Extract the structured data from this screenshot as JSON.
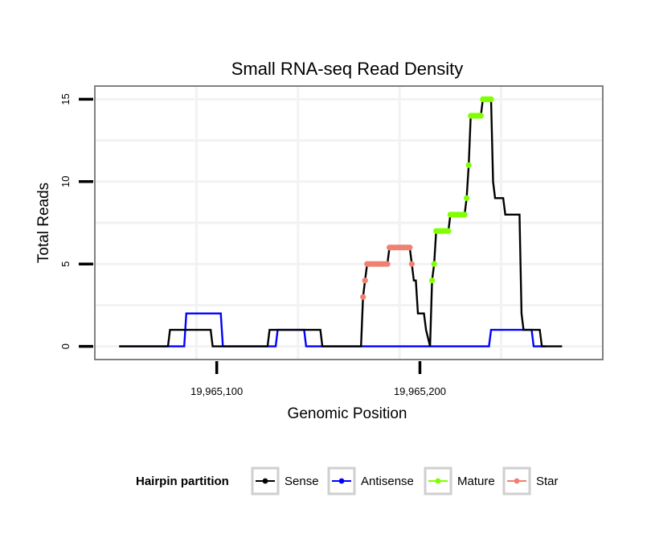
{
  "chart_data": {
    "type": "line",
    "title": "Small RNA-seq Read Density",
    "xlabel": "Genomic Position",
    "ylabel": "Total Reads",
    "xlim": [
      19965040,
      19965290
    ],
    "ylim": [
      -0.8,
      15.8
    ],
    "x_ticks": [
      19965100,
      19965200
    ],
    "x_tick_labels": [
      "19,965,100",
      "19,965,200"
    ],
    "y_ticks": [
      0,
      5,
      10,
      15
    ],
    "y_tick_labels": [
      "0",
      "5",
      "10",
      "15"
    ],
    "grid": true,
    "legend": {
      "title": "Hairpin partition",
      "position": "bottom",
      "entries": [
        "Sense",
        "Antisense",
        "Mature",
        "Star"
      ]
    },
    "series": [
      {
        "name": "Sense",
        "color": "#000000",
        "style": "line",
        "points": [
          [
            19965052,
            0
          ],
          [
            19965076,
            0
          ],
          [
            19965077,
            1
          ],
          [
            19965097,
            1
          ],
          [
            19965098,
            0
          ],
          [
            19965125,
            0
          ],
          [
            19965126,
            1
          ],
          [
            19965151,
            1
          ],
          [
            19965152,
            0
          ],
          [
            19965171,
            0
          ],
          [
            19965172,
            3
          ],
          [
            19965173,
            4
          ],
          [
            19965174,
            5
          ],
          [
            19965184,
            5
          ],
          [
            19965185,
            6
          ],
          [
            19965195,
            6
          ],
          [
            19965196,
            5
          ],
          [
            19965197,
            4
          ],
          [
            19965198,
            4
          ],
          [
            19965199,
            2
          ],
          [
            19965202,
            2
          ],
          [
            19965203,
            1
          ],
          [
            19965205,
            0
          ],
          [
            19965206,
            4
          ],
          [
            19965207,
            5
          ],
          [
            19965208,
            7
          ],
          [
            19965214,
            7
          ],
          [
            19965215,
            8
          ],
          [
            19965222,
            8
          ],
          [
            19965223,
            9
          ],
          [
            19965224,
            11
          ],
          [
            19965225,
            14
          ],
          [
            19965230,
            14
          ],
          [
            19965231,
            15
          ],
          [
            19965235,
            15
          ],
          [
            19965236,
            10
          ],
          [
            19965237,
            9
          ],
          [
            19965241,
            9
          ],
          [
            19965242,
            8
          ],
          [
            19965249,
            8
          ],
          [
            19965250,
            2
          ],
          [
            19965251,
            1
          ],
          [
            19965259,
            1
          ],
          [
            19965260,
            0
          ],
          [
            19965270,
            0
          ]
        ]
      },
      {
        "name": "Antisense",
        "color": "#0000ff",
        "style": "line",
        "points": [
          [
            19965052,
            0
          ],
          [
            19965084,
            0
          ],
          [
            19965085,
            2
          ],
          [
            19965102,
            2
          ],
          [
            19965103,
            0
          ],
          [
            19965129,
            0
          ],
          [
            19965130,
            1
          ],
          [
            19965143,
            1
          ],
          [
            19965144,
            0
          ],
          [
            19965234,
            0
          ],
          [
            19965235,
            1
          ],
          [
            19965255,
            1
          ],
          [
            19965256,
            0
          ],
          [
            19965262,
            0
          ]
        ]
      },
      {
        "name": "Mature",
        "color": "#7fff00",
        "style": "points",
        "points": [
          [
            19965206,
            4
          ],
          [
            19965207,
            5
          ],
          [
            19965208,
            7
          ],
          [
            19965209,
            7
          ],
          [
            19965210,
            7
          ],
          [
            19965211,
            7
          ],
          [
            19965212,
            7
          ],
          [
            19965213,
            7
          ],
          [
            19965214,
            7
          ],
          [
            19965215,
            8
          ],
          [
            19965216,
            8
          ],
          [
            19965217,
            8
          ],
          [
            19965218,
            8
          ],
          [
            19965219,
            8
          ],
          [
            19965220,
            8
          ],
          [
            19965221,
            8
          ],
          [
            19965222,
            8
          ],
          [
            19965223,
            9
          ],
          [
            19965224,
            11
          ],
          [
            19965225,
            14
          ],
          [
            19965226,
            14
          ],
          [
            19965227,
            14
          ],
          [
            19965228,
            14
          ],
          [
            19965229,
            14
          ],
          [
            19965230,
            14
          ],
          [
            19965231,
            15
          ],
          [
            19965232,
            15
          ],
          [
            19965233,
            15
          ],
          [
            19965234,
            15
          ],
          [
            19965235,
            15
          ]
        ]
      },
      {
        "name": "Star",
        "color": "#f08070",
        "style": "points",
        "points": [
          [
            19965172,
            3
          ],
          [
            19965173,
            4
          ],
          [
            19965174,
            5
          ],
          [
            19965175,
            5
          ],
          [
            19965176,
            5
          ],
          [
            19965177,
            5
          ],
          [
            19965178,
            5
          ],
          [
            19965179,
            5
          ],
          [
            19965180,
            5
          ],
          [
            19965181,
            5
          ],
          [
            19965182,
            5
          ],
          [
            19965183,
            5
          ],
          [
            19965184,
            5
          ],
          [
            19965185,
            6
          ],
          [
            19965186,
            6
          ],
          [
            19965187,
            6
          ],
          [
            19965188,
            6
          ],
          [
            19965189,
            6
          ],
          [
            19965190,
            6
          ],
          [
            19965191,
            6
          ],
          [
            19965192,
            6
          ],
          [
            19965193,
            6
          ],
          [
            19965194,
            6
          ],
          [
            19965195,
            6
          ],
          [
            19965196,
            5
          ]
        ]
      }
    ]
  }
}
